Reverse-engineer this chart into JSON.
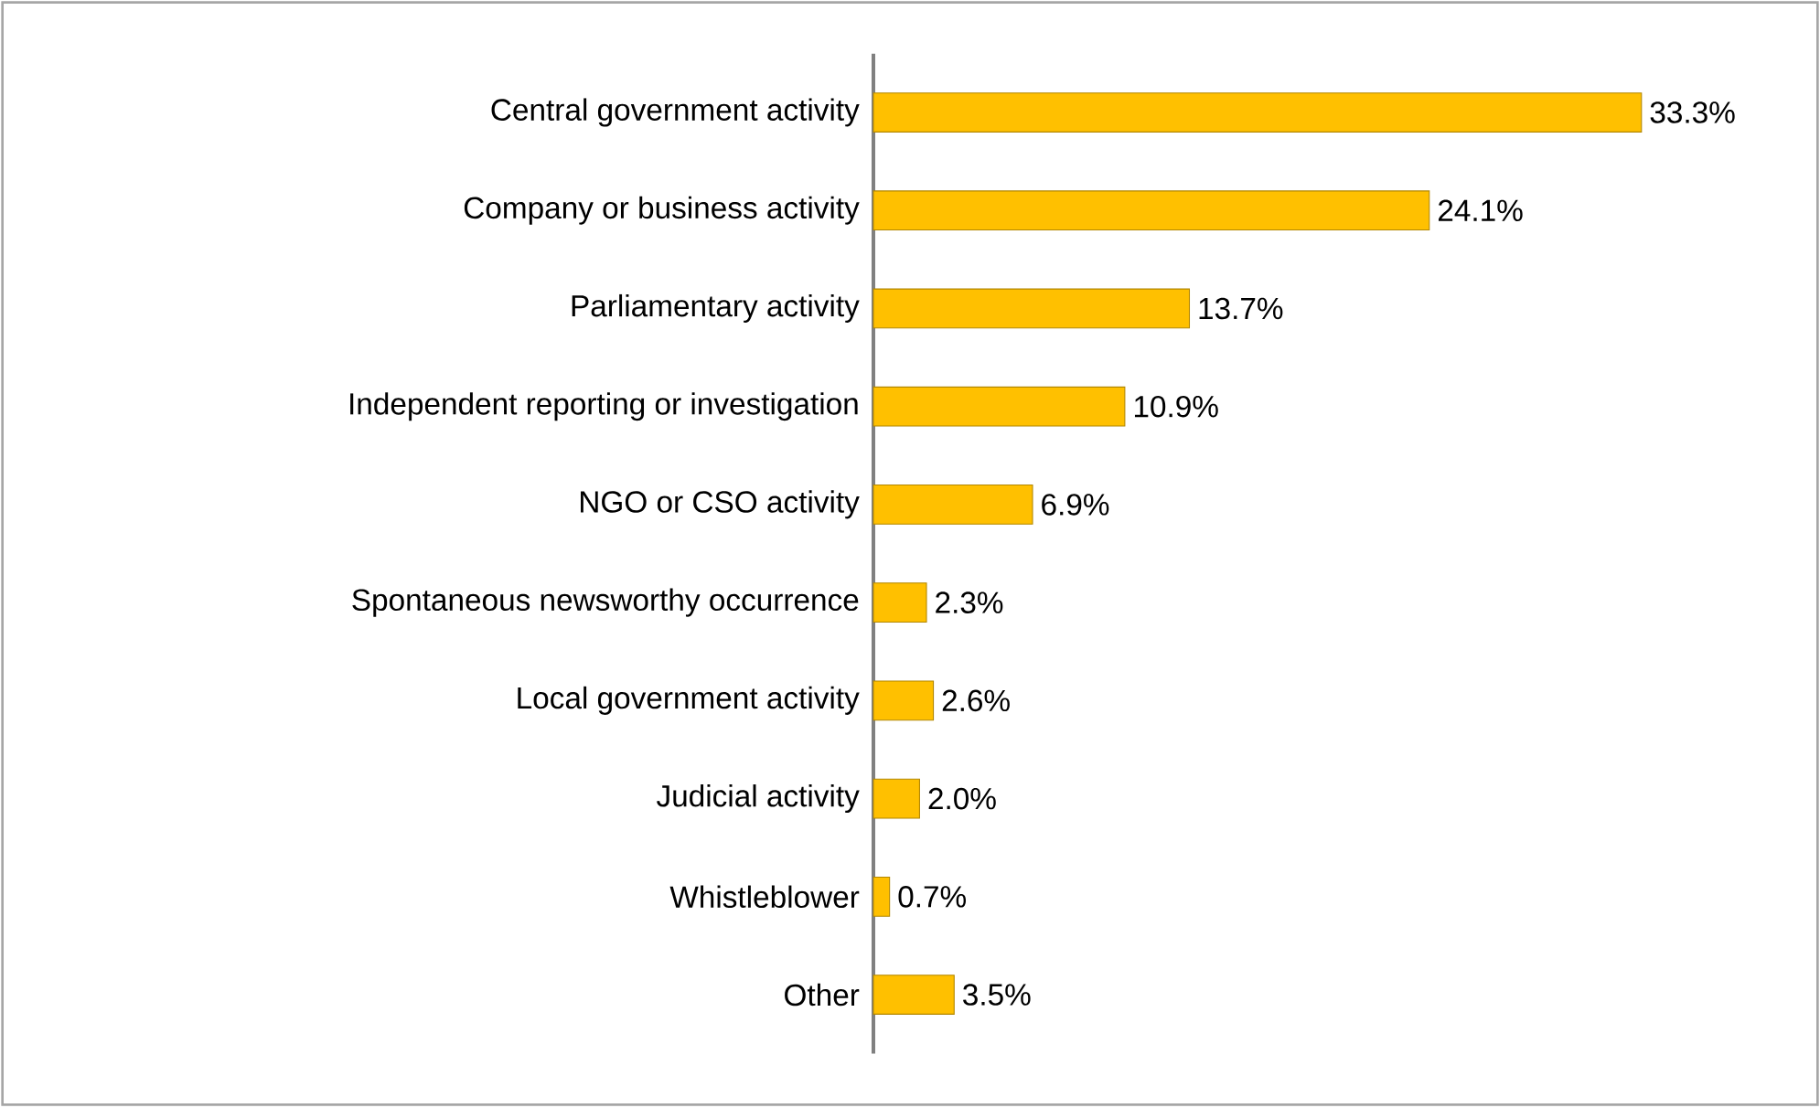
{
  "chart_data": {
    "type": "bar",
    "orientation": "horizontal",
    "categories": [
      "Central government activity",
      "Company or business activity",
      "Parliamentary activity",
      "Independent reporting or investigation",
      "NGO or CSO activity",
      "Spontaneous newsworthy occurrence",
      "Local government activity",
      "Judicial activity",
      "Whistleblower",
      "Other"
    ],
    "values": [
      33.3,
      24.1,
      13.7,
      10.9,
      6.9,
      2.3,
      2.6,
      2.0,
      0.7,
      3.5
    ],
    "value_labels": [
      "33.3%",
      "24.1%",
      "13.7%",
      "10.9%",
      "6.9%",
      "2.3%",
      "2.6%",
      "2.0%",
      "0.7%",
      "3.5%"
    ],
    "color": "#ffc000"
  }
}
